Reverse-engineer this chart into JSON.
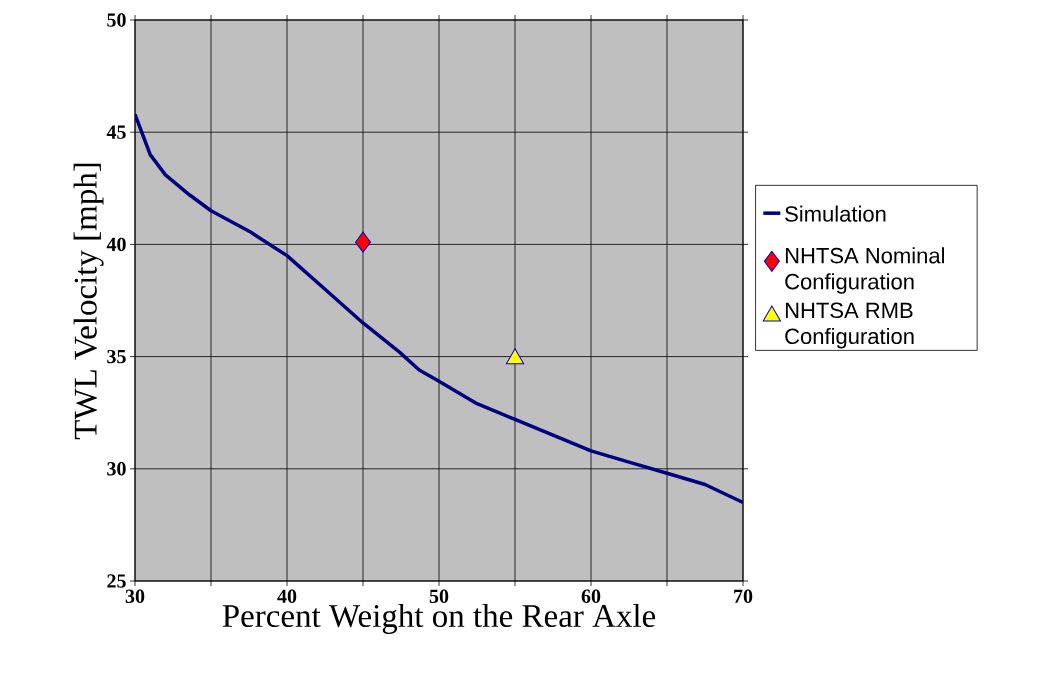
{
  "chart_data": {
    "type": "line",
    "xlabel": "Percent Weight on the Rear Axle",
    "ylabel": "TWL Velocity [mph]",
    "xlim": [
      30,
      70
    ],
    "ylim": [
      25,
      50
    ],
    "xticks": [
      30,
      {
        "value": 35,
        "label": null
      },
      40,
      {
        "value": 45,
        "label": null
      },
      50,
      {
        "value": 55,
        "label": null
      },
      60,
      {
        "value": 65,
        "label": null
      },
      70
    ],
    "yticks": [
      25,
      30,
      35,
      40,
      45,
      50
    ],
    "grid": true,
    "legend": "right",
    "series": [
      {
        "name": "Simulation",
        "color": "#000080",
        "marker": "none",
        "x": [
          30,
          31,
          32,
          33.6,
          35,
          37.6,
          40,
          42.5,
          45,
          47.4,
          48.7,
          50,
          52.5,
          55,
          57.5,
          60,
          62.5,
          65,
          67.5,
          70
        ],
        "values": [
          45.8,
          44.0,
          43.1,
          42.2,
          41.5,
          40.55,
          39.5,
          38.0,
          36.5,
          35.2,
          34.4,
          33.9,
          32.9,
          32.2,
          31.5,
          30.8,
          30.3,
          29.8,
          29.3,
          28.5
        ]
      },
      {
        "name": "NHTSA Nominal Configuration",
        "type": "scatter",
        "color": "#ff0000",
        "marker": "diamond",
        "x": [
          45
        ],
        "values": [
          40.1
        ]
      },
      {
        "name": "NHTSA RMB Configuration",
        "type": "scatter",
        "color": "#ffff00",
        "marker": "triangle",
        "x": [
          55
        ],
        "values": [
          34.9
        ]
      }
    ]
  }
}
